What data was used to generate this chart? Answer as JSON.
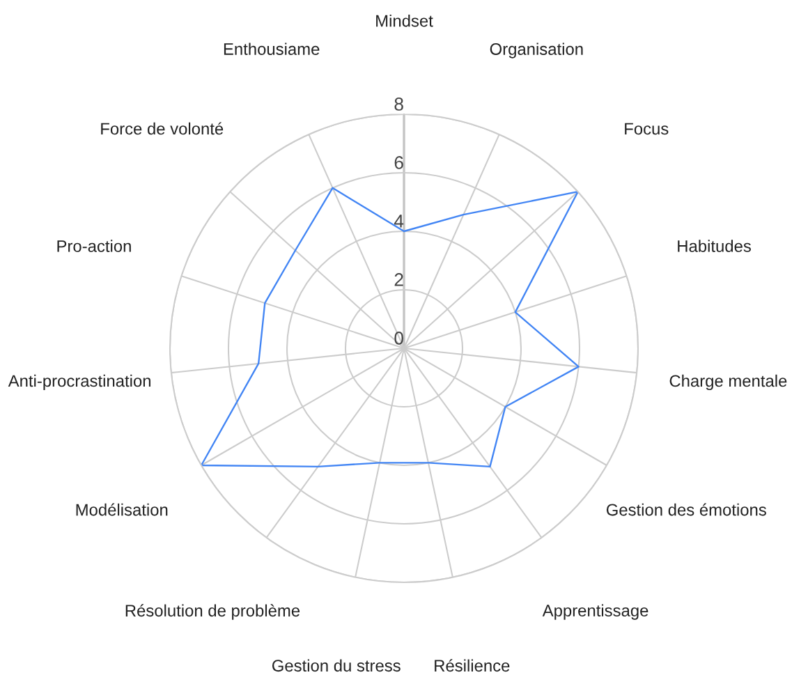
{
  "chart_data": {
    "type": "radar",
    "categories": [
      "Mindset",
      "Organisation",
      "Focus",
      "Habitudes",
      "Charge mentale",
      "Gestion des émotions",
      "Apprentissage",
      "Résilience",
      "Gestion du stress",
      "Résolution de problème",
      "Modélisation",
      "Anti-procrastination",
      "Pro-action",
      "Force de volonté",
      "Enthousiame"
    ],
    "series": [
      {
        "color": "#4285f4",
        "values": [
          4,
          5,
          8,
          4,
          6,
          4,
          5,
          4,
          4,
          5,
          8,
          5,
          5,
          5,
          6
        ]
      }
    ],
    "ylim": [
      0,
      8
    ],
    "yticks": [
      0,
      2,
      4,
      6,
      8
    ],
    "grid": true
  }
}
